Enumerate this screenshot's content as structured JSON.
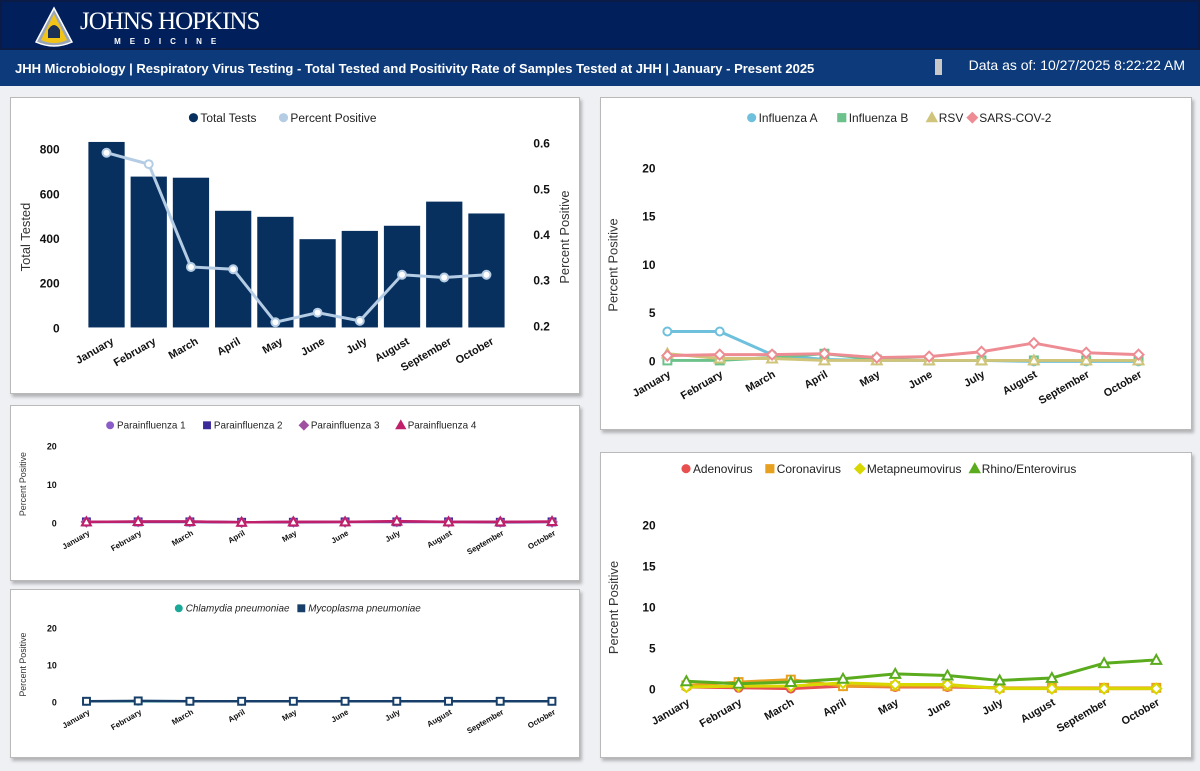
{
  "header": {
    "logo_text": "JOHNS HOPKINS",
    "logo_sub": "MEDICINE",
    "title": "JHH Microbiology | Respiratory Virus Testing - Total Tested and Positivity Rate of Samples Tested at JHH | January - Present 2025",
    "data_as_of": "Data as of: 10/27/2025 8:22:22 AM"
  },
  "colors": {
    "navy": "#08305f",
    "light": "#b4cce4"
  },
  "chart_data": [
    {
      "id": "totals",
      "type": "bar+line",
      "months": [
        "January",
        "February",
        "March",
        "April",
        "May",
        "June",
        "July",
        "August",
        "September",
        "October"
      ],
      "legend": [
        "Total Tests",
        "Percent Positive"
      ],
      "ylabel": "Total Tested",
      "y2label": "Percent Positive",
      "yticks": [
        "0",
        "200",
        "400",
        "600",
        "800"
      ],
      "y2ticks": [
        "0.2",
        "0.3",
        "0.4",
        "0.5",
        "0.6"
      ],
      "ylim": [
        0,
        800
      ],
      "y2lim": [
        0.2,
        0.6
      ],
      "series": [
        {
          "name": "Total Tests",
          "color": "#08305f",
          "values": [
            830,
            675,
            670,
            522,
            495,
            395,
            432,
            455,
            563,
            510
          ]
        },
        {
          "name": "Percent Positive",
          "color": "#b4cce4",
          "values": [
            0.578,
            0.553,
            0.328,
            0.323,
            0.207,
            0.228,
            0.21,
            0.311,
            0.305,
            0.311
          ]
        }
      ]
    },
    {
      "id": "flu",
      "type": "line",
      "ylabel": "Percent Positive",
      "yticks": [
        "0",
        "5",
        "10",
        "15",
        "20"
      ],
      "ylim": [
        0,
        20
      ],
      "months": [
        "January",
        "February",
        "March",
        "April",
        "May",
        "June",
        "July",
        "August",
        "September",
        "October"
      ],
      "series": [
        {
          "name": "Influenza A",
          "color": "#6ec0dc",
          "marker": "circle",
          "values": [
            3.1,
            3.1,
            0.7,
            0.2,
            0.1,
            0.1,
            0.1,
            0,
            0,
            0
          ]
        },
        {
          "name": "Influenza B",
          "color": "#6cc28a",
          "marker": "square",
          "values": [
            0.1,
            0.1,
            0.4,
            0.8,
            0.2,
            0.1,
            0.1,
            0.1,
            0.1,
            0.1
          ]
        },
        {
          "name": "RSV",
          "color": "#cfc47a",
          "marker": "triangle",
          "values": [
            0.8,
            0.3,
            0.3,
            0.1,
            0.1,
            0.1,
            0.1,
            0.1,
            0.1,
            0.1
          ]
        },
        {
          "name": "SARS-COV-2",
          "color": "#ee8c94",
          "marker": "diamond",
          "values": [
            0.6,
            0.7,
            0.7,
            0.8,
            0.4,
            0.5,
            1.0,
            1.9,
            0.9,
            0.7
          ]
        }
      ]
    },
    {
      "id": "para",
      "type": "line",
      "ylabel": "Percent Positive",
      "yticks": [
        "0",
        "10",
        "20"
      ],
      "ylim": [
        0,
        20
      ],
      "months": [
        "January",
        "February",
        "March",
        "April",
        "May",
        "June",
        "July",
        "August",
        "September",
        "October"
      ],
      "series": [
        {
          "name": "Parainfluenza 1",
          "color": "#8a5cc8",
          "marker": "circle",
          "values": [
            0.2,
            0.2,
            0.2,
            0.1,
            0.2,
            0.2,
            0.2,
            0.2,
            0.2,
            0.2
          ]
        },
        {
          "name": "Parainfluenza 2",
          "color": "#3a2a9a",
          "marker": "square",
          "values": [
            0.2,
            0.2,
            0.2,
            0.1,
            0.1,
            0.2,
            0.2,
            0.2,
            0.1,
            0.2
          ]
        },
        {
          "name": "Parainfluenza 3",
          "color": "#a050a0",
          "marker": "diamond",
          "values": [
            0.2,
            0.3,
            0.3,
            0.1,
            0.2,
            0.2,
            0.3,
            0.2,
            0.2,
            0.2
          ]
        },
        {
          "name": "Parainfluenza 4",
          "color": "#c0206a",
          "marker": "triangle",
          "values": [
            0.2,
            0.3,
            0.3,
            0.1,
            0.2,
            0.2,
            0.4,
            0.2,
            0.2,
            0.3
          ]
        }
      ]
    },
    {
      "id": "atyp",
      "type": "line",
      "ylabel": "Percent Positive",
      "yticks": [
        "0",
        "10",
        "20"
      ],
      "ylim": [
        0,
        20
      ],
      "months": [
        "January",
        "February",
        "March",
        "April",
        "May",
        "June",
        "July",
        "August",
        "September",
        "October"
      ],
      "series": [
        {
          "name": "Chlamydia pneumoniae",
          "color": "#1aa898",
          "marker": "circle",
          "values": [
            0.1,
            0.1,
            0.1,
            0.1,
            0.1,
            0.1,
            0.1,
            0.1,
            0.1,
            0.1
          ]
        },
        {
          "name": "Mycoplasma pneumoniae",
          "color": "#173f6a",
          "marker": "square",
          "values": [
            0.1,
            0.2,
            0.1,
            0.1,
            0.1,
            0.1,
            0.1,
            0.1,
            0.1,
            0.1
          ]
        }
      ]
    },
    {
      "id": "other",
      "type": "line",
      "ylabel": "Percent Positive",
      "yticks": [
        "0",
        "5",
        "10",
        "15",
        "20"
      ],
      "ylim": [
        0,
        20
      ],
      "months": [
        "January",
        "February",
        "March",
        "April",
        "May",
        "June",
        "July",
        "August",
        "September",
        "October"
      ],
      "series": [
        {
          "name": "Adenovirus",
          "color": "#e85050",
          "marker": "circle",
          "values": [
            0.3,
            0.2,
            0.1,
            0.4,
            0.3,
            0.3,
            0.2,
            0.1,
            0.1,
            0.1
          ]
        },
        {
          "name": "Coronavirus",
          "color": "#e8a020",
          "marker": "square",
          "values": [
            0.5,
            0.9,
            1.2,
            0.4,
            0.4,
            0.4,
            0.2,
            0.2,
            0.2,
            0.2
          ]
        },
        {
          "name": "Metapneumovirus",
          "color": "#d8d800",
          "marker": "diamond",
          "values": [
            0.3,
            0.4,
            0.4,
            0.8,
            0.6,
            0.6,
            0.1,
            0.1,
            0.1,
            0.1
          ]
        },
        {
          "name": "Rhino/Enterovirus",
          "color": "#5aac1e",
          "marker": "triangle",
          "values": [
            1.0,
            0.7,
            0.9,
            1.3,
            1.9,
            1.7,
            1.1,
            1.4,
            3.2,
            3.6
          ]
        }
      ]
    }
  ]
}
